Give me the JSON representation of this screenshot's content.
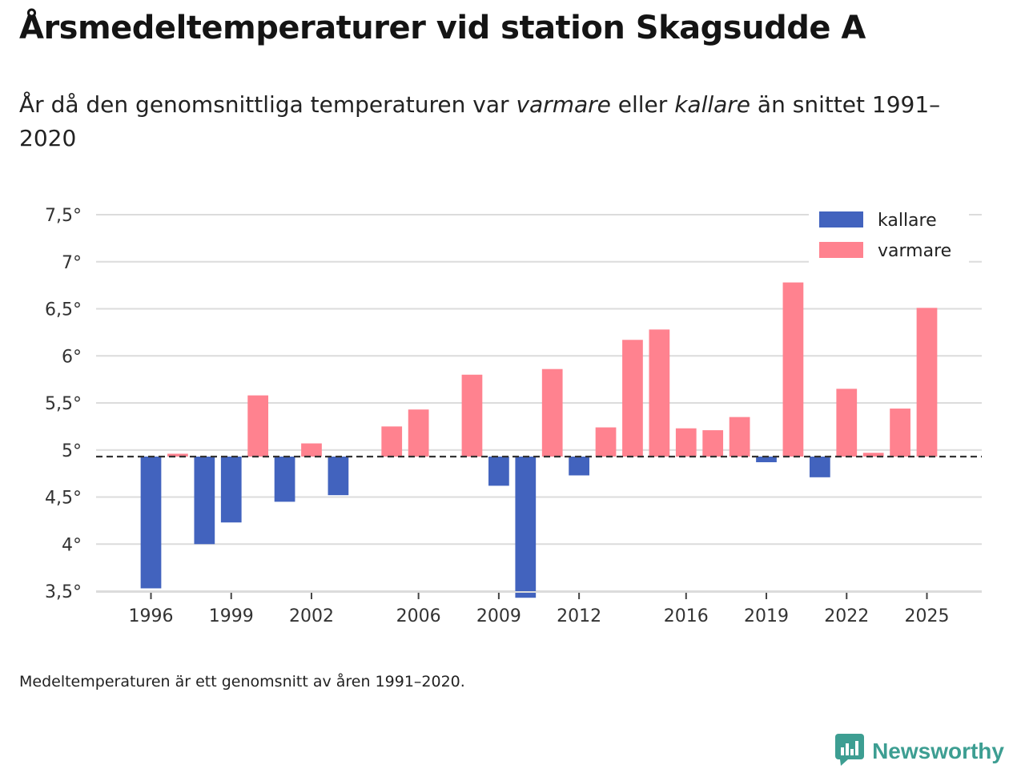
{
  "title": "Årsmedeltemperaturer vid station Skagsudde A",
  "subtitle": {
    "part1": "År då den genomsnittliga temperaturen var ",
    "warm_word": "varmare",
    "part2": " eller ",
    "cold_word": "kallare",
    "part3": " än snittet 1991–2020"
  },
  "footnote": "Medeltemperaturen är ett genomsnitt av åren 1991–2020.",
  "brand": {
    "name": "Newsworthy",
    "icon": "newsworthy-logo-icon",
    "color": "#3d9e92"
  },
  "chart_data": {
    "type": "bar",
    "title": "Årsmedeltemperaturer vid station Skagsudde A",
    "xlabel": "",
    "ylabel": "",
    "baseline": 4.93,
    "ylim": [
      3.5,
      7.5
    ],
    "y_ticks": [
      3.5,
      4,
      4.5,
      5,
      5.5,
      6,
      6.5,
      7,
      7.5
    ],
    "y_tick_labels": [
      "3,5°",
      "4°",
      "4,5°",
      "5°",
      "5,5°",
      "6°",
      "6,5°",
      "7°",
      "7,5°"
    ],
    "x_ticks": [
      1996,
      1999,
      2002,
      2006,
      2009,
      2012,
      2016,
      2019,
      2022,
      2025
    ],
    "x_tick_labels": [
      "1996",
      "1999",
      "2002",
      "2006",
      "2009",
      "2012",
      "2016",
      "2019",
      "2022",
      "2025"
    ],
    "x_range": [
      1993.95,
      2027.05
    ],
    "legend": [
      {
        "key": "kallare",
        "label": "kallare",
        "color": "#4263be"
      },
      {
        "key": "varmare",
        "label": "varmare",
        "color": "#ff828f"
      }
    ],
    "legend_position": "top-right",
    "colors": {
      "kallare": "#4263be",
      "varmare": "#ff828f",
      "baseline": "#333333",
      "grid": "#dcdcdc"
    },
    "years": [
      1996,
      1997,
      1998,
      1999,
      2000,
      2001,
      2002,
      2003,
      2004,
      2005,
      2006,
      2007,
      2008,
      2009,
      2010,
      2011,
      2012,
      2013,
      2014,
      2015,
      2016,
      2017,
      2018,
      2019,
      2020,
      2021,
      2022,
      2023,
      2024,
      2025
    ],
    "values": [
      3.53,
      4.96,
      4.0,
      4.23,
      5.58,
      4.45,
      5.07,
      4.52,
      null,
      5.25,
      5.43,
      null,
      5.8,
      4.62,
      3.43,
      5.86,
      4.73,
      5.24,
      6.17,
      6.28,
      5.23,
      5.21,
      5.35,
      4.87,
      6.78,
      4.71,
      5.65,
      4.97,
      5.44,
      6.51
    ]
  }
}
